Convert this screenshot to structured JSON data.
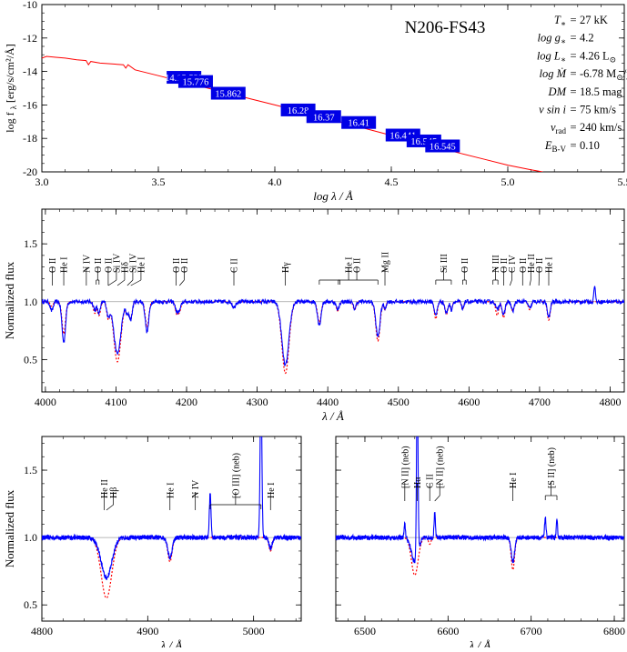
{
  "chart_data": [
    {
      "type": "line",
      "title": "N206-FS43",
      "xlabel": "log λ / Å",
      "ylabel": "log f",
      "ylabel_sub": "λ",
      "ylabel_unit": "[erg/s/cm²/Å]",
      "xlim": [
        3.0,
        5.5
      ],
      "ylim": [
        -20,
        -10
      ],
      "xticks": [
        3.0,
        3.5,
        4.0,
        4.5,
        5.0,
        5.5
      ],
      "xtick_labels": [
        "3.0",
        "3.5",
        "4.0",
        "4.5",
        "5.0",
        "5.5"
      ],
      "yticks": [
        -20,
        -18,
        -16,
        -14,
        -12,
        -10
      ],
      "ytick_labels": [
        "-20",
        "-18",
        "-16",
        "-14",
        "-12",
        "-10"
      ],
      "series": [
        {
          "color": "#ff0000",
          "x": [
            3.0,
            3.02,
            3.06,
            3.1,
            3.15,
            3.19,
            3.2,
            3.21,
            3.25,
            3.3,
            3.35,
            3.36,
            3.37,
            3.4,
            3.5,
            3.6,
            3.7,
            3.8,
            3.9,
            4.0,
            4.1,
            4.2,
            4.3,
            4.4,
            4.5,
            4.6,
            4.7,
            4.8,
            4.9,
            5.0,
            5.1,
            5.15
          ],
          "y": [
            -13.2,
            -13.1,
            -13.15,
            -13.2,
            -13.3,
            -13.35,
            -13.6,
            -13.4,
            -13.5,
            -13.55,
            -13.6,
            -13.8,
            -13.6,
            -13.9,
            -14.25,
            -14.6,
            -14.95,
            -15.3,
            -15.65,
            -16.0,
            -16.35,
            -16.72,
            -17.08,
            -17.45,
            -17.82,
            -18.2,
            -18.55,
            -18.9,
            -19.25,
            -19.6,
            -19.88,
            -20.0
          ]
        }
      ],
      "photometry": [
        {
          "x": 3.61,
          "y": -14.35,
          "label": "14.15.539"
        },
        {
          "x": 3.66,
          "y": -14.6,
          "label": "15.776"
        },
        {
          "x": 3.8,
          "y": -15.3,
          "label": "15.862"
        },
        {
          "x": 4.1,
          "y": -16.3,
          "label": "16.28"
        },
        {
          "x": 4.21,
          "y": -16.7,
          "label": "16.37"
        },
        {
          "x": 4.36,
          "y": -17.05,
          "label": "16.41"
        },
        {
          "x": 4.55,
          "y": -17.8,
          "label": "16.441"
        },
        {
          "x": 4.64,
          "y": -18.15,
          "label": "16.545"
        },
        {
          "x": 4.72,
          "y": -18.45,
          "label": "16.545"
        }
      ],
      "photometry_color": "#0000e6",
      "parameters": [
        {
          "label": "T",
          "sub": "∗",
          "eq": "=",
          "value": "27 kK"
        },
        {
          "label": "log g",
          "sub": "∗",
          "eq": "=",
          "value": "4.2"
        },
        {
          "label": "log L",
          "sub": "∗",
          "eq": "=",
          "value": "4.26 L",
          "unit_sub": "⊙"
        },
        {
          "label": "log Ṁ",
          "sub": "",
          "eq": "=",
          "value": "-6.78 M",
          "unit_sub": "⊙",
          "suffix": "/yr"
        },
        {
          "label": "DM",
          "sub": "",
          "eq": "=",
          "value": "18.5 mag"
        },
        {
          "label": "v sin i",
          "sub": "",
          "eq": "=",
          "value": "75 km/s"
        },
        {
          "label": "v",
          "sub": "rad",
          "eq": "=",
          "value": "240 km/s"
        },
        {
          "label": "E",
          "sub": "B-V",
          "eq": "=",
          "value": "0.10"
        }
      ]
    },
    {
      "type": "line",
      "xlabel": "λ / Å",
      "ylabel": "Normalized flux",
      "xlim": [
        3995,
        4820
      ],
      "ylim": [
        0.22,
        1.8
      ],
      "xticks": [
        4000,
        4100,
        4200,
        4300,
        4400,
        4500,
        4600,
        4700,
        4800
      ],
      "xtick_labels": [
        "4000",
        "4100",
        "4200",
        "4300",
        "4400",
        "4500",
        "4600",
        "4700",
        "4800"
      ],
      "yticks": [
        0.5,
        1.0,
        1.5
      ],
      "ytick_labels": [
        "0.5",
        "1.0",
        "1.5"
      ],
      "continuum": 1.0,
      "observed_color": "#0000ff",
      "model_color": "#ff0000",
      "lines": [
        {
          "x": 4009,
          "obs": 0.92,
          "mod": 0.96,
          "w": 2
        },
        {
          "x": 4026,
          "obs": 0.65,
          "mod": 0.72,
          "w": 2.5
        },
        {
          "x": 4070,
          "obs": 0.93,
          "mod": 0.9,
          "w": 2
        },
        {
          "x": 4076,
          "obs": 0.9,
          "mod": 0.88,
          "w": 2
        },
        {
          "x": 4089,
          "obs": 0.88,
          "mod": 0.86,
          "w": 2
        },
        {
          "x": 4102,
          "obs": 0.55,
          "mod": 0.48,
          "w": 5
        },
        {
          "x": 4116,
          "obs": 0.9,
          "mod": 0.9,
          "w": 2
        },
        {
          "x": 4121,
          "obs": 0.85,
          "mod": 0.85,
          "w": 2
        },
        {
          "x": 4144,
          "obs": 0.74,
          "mod": 0.78,
          "w": 2.5
        },
        {
          "x": 4186,
          "obs": 0.92,
          "mod": 0.9,
          "w": 2
        },
        {
          "x": 4190,
          "obs": 0.93,
          "mod": 0.92,
          "w": 2
        },
        {
          "x": 4267,
          "obs": 0.95,
          "mod": 0.94,
          "w": 2
        },
        {
          "x": 4340,
          "obs": 0.45,
          "mod": 0.38,
          "w": 5
        },
        {
          "x": 4388,
          "obs": 0.8,
          "mod": 0.82,
          "w": 2.5
        },
        {
          "x": 4414,
          "obs": 0.93,
          "mod": 0.92,
          "w": 2
        },
        {
          "x": 4438,
          "obs": 0.94,
          "mod": 0.93,
          "w": 2
        },
        {
          "x": 4471,
          "obs": 0.7,
          "mod": 0.66,
          "w": 3
        },
        {
          "x": 4481,
          "obs": 0.94,
          "mod": 0.93,
          "w": 1.5
        },
        {
          "x": 4553,
          "obs": 0.88,
          "mod": 0.85,
          "w": 2
        },
        {
          "x": 4568,
          "obs": 0.9,
          "mod": 0.89,
          "w": 2
        },
        {
          "x": 4575,
          "obs": 0.93,
          "mod": 0.93,
          "w": 1.5
        },
        {
          "x": 4591,
          "obs": 0.93,
          "mod": 0.93,
          "w": 1.5
        },
        {
          "x": 4640,
          "obs": 0.93,
          "mod": 0.88,
          "w": 2
        },
        {
          "x": 4649,
          "obs": 0.88,
          "mod": 0.86,
          "w": 2
        },
        {
          "x": 4662,
          "obs": 0.92,
          "mod": 0.92,
          "w": 2
        },
        {
          "x": 4686,
          "obs": 0.94,
          "mod": 0.93,
          "w": 2
        },
        {
          "x": 4713,
          "obs": 0.86,
          "mod": 0.84,
          "w": 2
        },
        {
          "x": 4778,
          "obs": 1.15,
          "mod": 1.0,
          "w": 1
        }
      ],
      "annotations": [
        {
          "label": "O II",
          "x": [
            4010
          ]
        },
        {
          "label": "He I",
          "x": [
            4026
          ]
        },
        {
          "label": "N IV",
          "x": [
            4058
          ]
        },
        {
          "label": "O II",
          "x": [
            4072,
            4076
          ]
        },
        {
          "label": "O II",
          "x": [
            4089
          ]
        },
        {
          "label": "Si IV",
          "x": [
            4089
          ]
        },
        {
          "label": "Hδ",
          "x": [
            4102
          ]
        },
        {
          "label": "Si IV",
          "x": [
            4116
          ]
        },
        {
          "label": "He I",
          "x": [
            4121
          ]
        },
        {
          "label": "O II",
          "x": [
            4185
          ]
        },
        {
          "label": "O II",
          "x": [
            4190
          ]
        },
        {
          "label": "C II",
          "x": [
            4267
          ]
        },
        {
          "label": "Hγ",
          "x": [
            4340
          ]
        },
        {
          "label": "He I",
          "x": [
            4388,
            4471
          ]
        },
        {
          "label": "O II",
          "x": [
            4415,
            4417
          ]
        },
        {
          "label": "Mg II",
          "x": [
            4481
          ]
        },
        {
          "label": "Si III",
          "x": [
            4553,
            4575
          ]
        },
        {
          "label": "O II",
          "x": [
            4591,
            4596
          ]
        },
        {
          "label": "N III",
          "x": [
            4634,
            4641
          ]
        },
        {
          "label": "O II",
          "x": [
            4649
          ]
        },
        {
          "label": "C IV",
          "x": [
            4658
          ]
        },
        {
          "label": "O II",
          "x": [
            4676
          ]
        },
        {
          "label": "He II",
          "x": [
            4686
          ]
        },
        {
          "label": "O II",
          "x": [
            4699
          ]
        },
        {
          "label": "He I",
          "x": [
            4713
          ]
        }
      ]
    },
    {
      "type": "line",
      "xlabel": "λ / Å",
      "ylabel": "Normalized flux",
      "xlim": [
        4800,
        5045
      ],
      "ylim": [
        0.38,
        1.75
      ],
      "xticks": [
        4800,
        4900,
        5000
      ],
      "xtick_labels": [
        "4800",
        "4900",
        "5000"
      ],
      "yticks": [
        0.5,
        1.0,
        1.5
      ],
      "ytick_labels": [
        "0.5",
        "1.0",
        "1.5"
      ],
      "continuum": 1.0,
      "observed_color": "#0000ff",
      "model_color": "#ff0000",
      "lines": [
        {
          "x": 4861,
          "obs": 0.7,
          "mod": 0.55,
          "w": 5
        },
        {
          "x": 4921,
          "obs": 0.85,
          "mod": 0.82,
          "w": 2
        },
        {
          "x": 4959,
          "obs": 1.32,
          "mod": 1.0,
          "w": 0.8
        },
        {
          "x": 5007,
          "obs": 2.2,
          "mod": 1.0,
          "w": 0.8
        },
        {
          "x": 5016,
          "obs": 0.92,
          "mod": 0.9,
          "w": 1.5
        }
      ],
      "annotations": [
        {
          "label": "He II",
          "x": [
            4859
          ]
        },
        {
          "label": "Hβ",
          "x": [
            4861
          ]
        },
        {
          "label": "He I",
          "x": [
            4921
          ]
        },
        {
          "label": "N IV",
          "x": [
            4945
          ]
        },
        {
          "label": "[O III] (neb)",
          "x": [
            4959,
            5007
          ]
        },
        {
          "label": "He I",
          "x": [
            5016
          ]
        }
      ]
    },
    {
      "type": "line",
      "xlabel": "λ / Å",
      "ylabel": "",
      "xlim": [
        6465,
        6812
      ],
      "ylim": [
        0.38,
        1.75
      ],
      "xticks": [
        6500,
        6600,
        6700,
        6800
      ],
      "xtick_labels": [
        "6500",
        "6600",
        "6700",
        "6800"
      ],
      "yticks": [
        0.5,
        1.0,
        1.5
      ],
      "continuum": 1.0,
      "observed_color": "#0000ff",
      "model_color": "#ff0000",
      "lines": [
        {
          "x": 6548,
          "obs": 1.1,
          "mod": 1.0,
          "w": 0.8
        },
        {
          "x": 6560,
          "obs": 0.82,
          "mod": 0.72,
          "w": 4
        },
        {
          "x": 6563,
          "obs": 2.3,
          "mod": 1.0,
          "w": 0.9
        },
        {
          "x": 6578,
          "obs": 1.0,
          "mod": 0.95,
          "w": 1.5
        },
        {
          "x": 6584,
          "obs": 1.18,
          "mod": 1.0,
          "w": 0.8
        },
        {
          "x": 6678,
          "obs": 0.82,
          "mod": 0.76,
          "w": 2
        },
        {
          "x": 6717,
          "obs": 1.15,
          "mod": 1.0,
          "w": 0.8
        },
        {
          "x": 6731,
          "obs": 1.12,
          "mod": 1.0,
          "w": 0.8
        }
      ],
      "annotations": [
        {
          "label": "[N II] (neb)",
          "x": [
            6548
          ]
        },
        {
          "label": "Hα",
          "x": [
            6563
          ]
        },
        {
          "label": "C II",
          "x": [
            6578
          ]
        },
        {
          "label": "[N II] (neb)",
          "x": [
            6584
          ]
        },
        {
          "label": "He I",
          "x": [
            6678
          ]
        },
        {
          "label": "[S II] (neb)",
          "x": [
            6717,
            6731
          ]
        }
      ]
    }
  ]
}
